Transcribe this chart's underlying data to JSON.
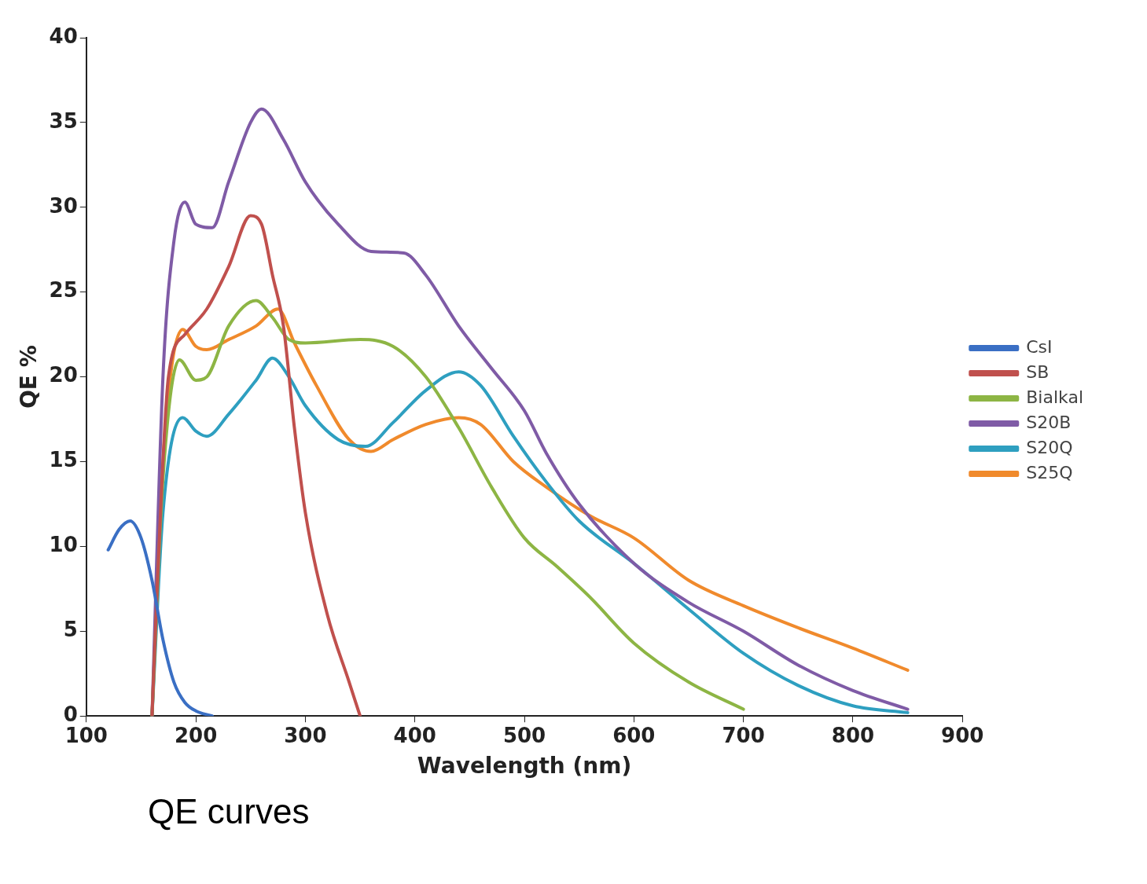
{
  "chart_data": {
    "type": "line",
    "xlabel": "Wavelength (nm)",
    "ylabel": "QE %",
    "annotations": [
      "QE curves"
    ],
    "xlim": [
      100,
      900
    ],
    "xticks": [
      100,
      200,
      300,
      400,
      500,
      600,
      700,
      800,
      900
    ],
    "ylim": [
      0,
      40
    ],
    "yticks": [
      0,
      5,
      10,
      15,
      20,
      25,
      30,
      35,
      40
    ],
    "grid": false,
    "legend": "right",
    "marker": "none",
    "line_style": "solid",
    "series": [
      {
        "name": "CsI",
        "color": "#3a6fc4",
        "x": [
          120,
          130,
          140,
          150,
          160,
          170,
          180,
          190,
          200,
          215
        ],
        "values": [
          9.8,
          11,
          11.5,
          10.5,
          8,
          4.5,
          2,
          0.8,
          0.3,
          0
        ]
      },
      {
        "name": "SB",
        "color": "#c0504d",
        "x": [
          160,
          165,
          175,
          190,
          210,
          230,
          250,
          260,
          270,
          280,
          290,
          300,
          320,
          340,
          350
        ],
        "values": [
          0,
          8,
          20,
          22.5,
          24,
          26.5,
          29.5,
          29,
          26,
          23,
          17,
          12,
          6,
          2,
          0
        ]
      },
      {
        "name": "Bialkal",
        "color": "#8db544",
        "x": [
          160,
          170,
          185,
          200,
          210,
          230,
          255,
          270,
          285,
          300,
          350,
          380,
          410,
          440,
          470,
          500,
          530,
          560,
          600,
          650,
          700
        ],
        "values": [
          0,
          14,
          21,
          19.8,
          20,
          23,
          24.5,
          23.5,
          22.2,
          22,
          22.2,
          21.8,
          20,
          17,
          13.5,
          10.5,
          8.8,
          7,
          4.3,
          2,
          0.4
        ]
      },
      {
        "name": "S20B",
        "color": "#7f5ba6",
        "x": [
          160,
          170,
          180,
          190,
          200,
          215,
          230,
          250,
          260,
          280,
          300,
          330,
          360,
          390,
          410,
          440,
          470,
          500,
          520,
          550,
          600,
          650,
          700,
          750,
          800,
          850
        ],
        "values": [
          0,
          20,
          28,
          30.3,
          29,
          28.8,
          31.5,
          35,
          35.8,
          34,
          31.5,
          29,
          27.4,
          27.3,
          26,
          23,
          20.5,
          18,
          15.5,
          12.5,
          9,
          6.7,
          5,
          3,
          1.5,
          0.4
        ]
      },
      {
        "name": "S20Q",
        "color": "#2e9fc0",
        "x": [
          160,
          170,
          188,
          200,
          210,
          230,
          255,
          270,
          285,
          300,
          330,
          355,
          380,
          410,
          440,
          460,
          490,
          520,
          550,
          600,
          650,
          700,
          750,
          800,
          850
        ],
        "values": [
          0,
          12,
          17.6,
          16.8,
          16.5,
          17.8,
          19.8,
          21.1,
          20,
          18.3,
          16.3,
          15.9,
          17.3,
          19.2,
          20.3,
          19.5,
          16.5,
          13.8,
          11.5,
          9,
          6.3,
          3.7,
          1.8,
          0.6,
          0.2
        ]
      },
      {
        "name": "S25Q",
        "color": "#f08a2c",
        "x": [
          160,
          170,
          188,
          200,
          210,
          230,
          255,
          275,
          290,
          310,
          340,
          360,
          380,
          410,
          440,
          460,
          490,
          520,
          560,
          600,
          650,
          700,
          750,
          800,
          850
        ],
        "values": [
          0,
          15,
          22.8,
          21.8,
          21.6,
          22.2,
          23,
          24,
          22,
          19.5,
          16.3,
          15.6,
          16.3,
          17.2,
          17.6,
          17.2,
          15,
          13.5,
          11.8,
          10.5,
          8,
          6.5,
          5.2,
          4,
          2.7
        ]
      }
    ]
  }
}
